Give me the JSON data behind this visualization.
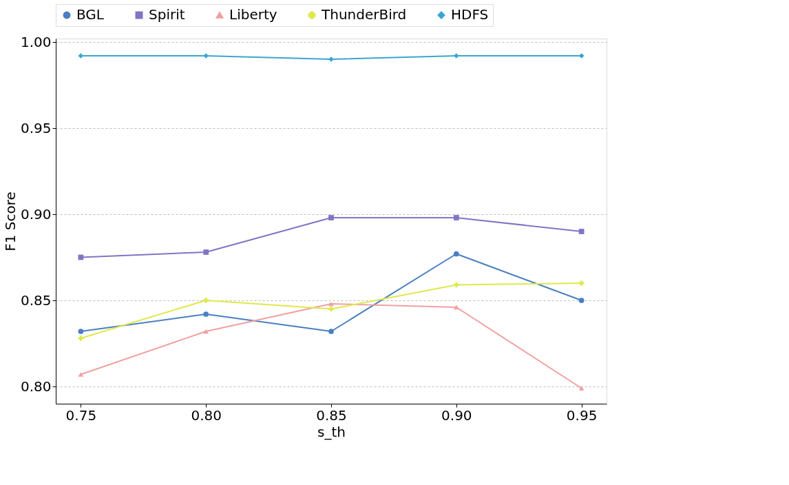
{
  "chart_data": {
    "type": "line",
    "xlabel": "s_th",
    "ylabel": "F1 Score",
    "x": [
      0.75,
      0.8,
      0.85,
      0.9,
      0.95
    ],
    "series": [
      {
        "name": "BGL",
        "color": "#4a7fc1",
        "marker": "circle",
        "values": [
          0.832,
          0.842,
          0.832,
          0.877,
          0.85
        ]
      },
      {
        "name": "Spirit",
        "color": "#8075c4",
        "marker": "square",
        "values": [
          0.875,
          0.878,
          0.898,
          0.898,
          0.89
        ]
      },
      {
        "name": "Liberty",
        "color": "#f0a0a0",
        "marker": "triangle",
        "values": [
          0.807,
          0.832,
          0.848,
          0.846,
          0.799
        ]
      },
      {
        "name": "ThunderBird",
        "color": "#dfe84a",
        "marker": "cross",
        "values": [
          0.828,
          0.85,
          0.845,
          0.859,
          0.86
        ]
      },
      {
        "name": "HDFS",
        "color": "#3aa6d0",
        "marker": "diamond",
        "values": [
          0.992,
          0.992,
          0.99,
          0.992,
          0.992
        ]
      }
    ],
    "xlim": [
      0.74,
      0.96
    ],
    "ylim": [
      0.79,
      1.002
    ],
    "xticks": [
      {
        "value": 0.75,
        "label": "0.75"
      },
      {
        "value": 0.8,
        "label": "0.80"
      },
      {
        "value": 0.85,
        "label": "0.85"
      },
      {
        "value": 0.9,
        "label": "0.90"
      },
      {
        "value": 0.95,
        "label": "0.95"
      }
    ],
    "yticks": [
      {
        "value": 0.8,
        "label": "0.80"
      },
      {
        "value": 0.85,
        "label": "0.85"
      },
      {
        "value": 0.9,
        "label": "0.90"
      },
      {
        "value": 0.95,
        "label": "0.95"
      },
      {
        "value": 1.0,
        "label": "1.00"
      }
    ],
    "grid": "y",
    "legend": "top",
    "line_style": "solid"
  }
}
